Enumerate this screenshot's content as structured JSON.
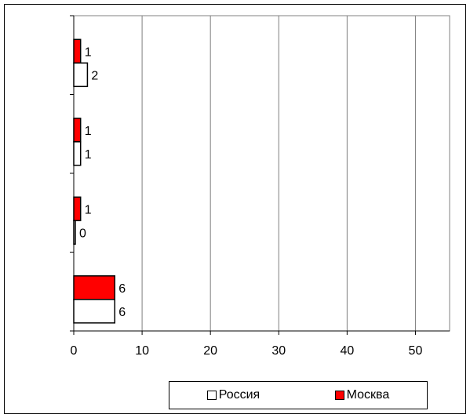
{
  "chart_data": {
    "type": "bar",
    "orientation": "horizontal",
    "categories": [
      "",
      "",
      "",
      ""
    ],
    "series": [
      {
        "name": "Москва",
        "color": "#ff0000",
        "values": [
          1,
          1,
          1,
          6
        ],
        "labels": [
          "1",
          "1",
          "1",
          "6"
        ]
      },
      {
        "name": "Россия",
        "color": "#ffffff",
        "values": [
          2,
          1,
          0,
          6
        ],
        "labels": [
          "2",
          "1",
          "0",
          "6"
        ]
      }
    ],
    "xticks": [
      0,
      10,
      20,
      30,
      40,
      50
    ],
    "xlim": [
      0,
      55
    ],
    "grid": "vertical",
    "legend": "bottom",
    "title": "",
    "xlabel": "",
    "ylabel": ""
  },
  "legend": {
    "items": [
      {
        "label": "Россия",
        "color": "#ffffff"
      },
      {
        "label": "Москва",
        "color": "#ff0000"
      }
    ]
  }
}
